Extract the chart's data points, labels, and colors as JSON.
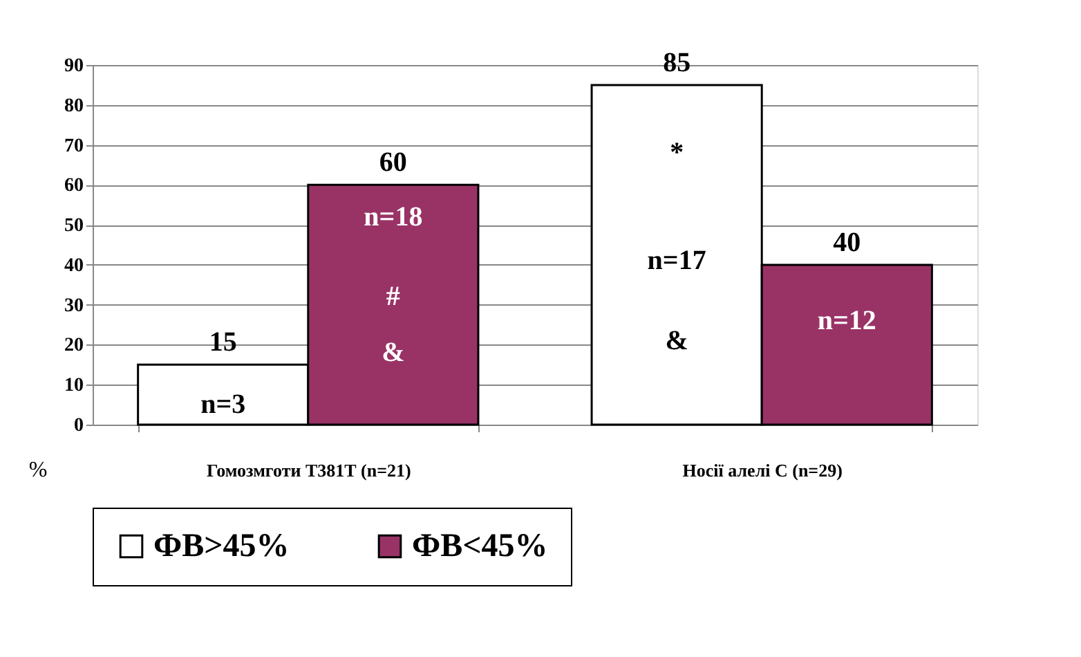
{
  "chart_data": {
    "type": "bar",
    "categories": [
      "Гомозмготи Т381Т (n=21)",
      "Носії алелі С (n=29)"
    ],
    "series": [
      {
        "name": "ФВ>45%",
        "color": "#ffffff",
        "values": [
          15,
          85
        ]
      },
      {
        "name": "ФВ<45%",
        "color": "#993366",
        "values": [
          60,
          40
        ]
      }
    ],
    "ylabel": "%",
    "ylim": [
      0,
      90
    ],
    "yticks": [
      0,
      10,
      20,
      30,
      40,
      50,
      60,
      70,
      80,
      90
    ],
    "grid": "y",
    "legend": "bottom",
    "data_labels": true,
    "annotations": [
      {
        "text": "n=3",
        "x": "Гомозмготи Т381Т (n=21)",
        "y": 5
      },
      {
        "text": "n=18",
        "x": "Гомозмготи Т381Т (n=21)",
        "y": 52
      },
      {
        "text": "#",
        "x": "Гомозмготи Т381Т (n=21)",
        "y": 32
      },
      {
        "text": "&",
        "x": "Гомозмготи Т381Т (n=21)",
        "y": 18
      },
      {
        "text": "*",
        "x": "Носії алелі С (n=29)",
        "y": 68
      },
      {
        "text": "n=17",
        "x": "Носії алелі С (n=29)",
        "y": 41
      },
      {
        "text": "&",
        "x": "Носії алелі С (n=29)",
        "y": 21
      },
      {
        "text": "n=12",
        "x": "Носії алелі С (n=29)",
        "y": 26
      }
    ]
  }
}
